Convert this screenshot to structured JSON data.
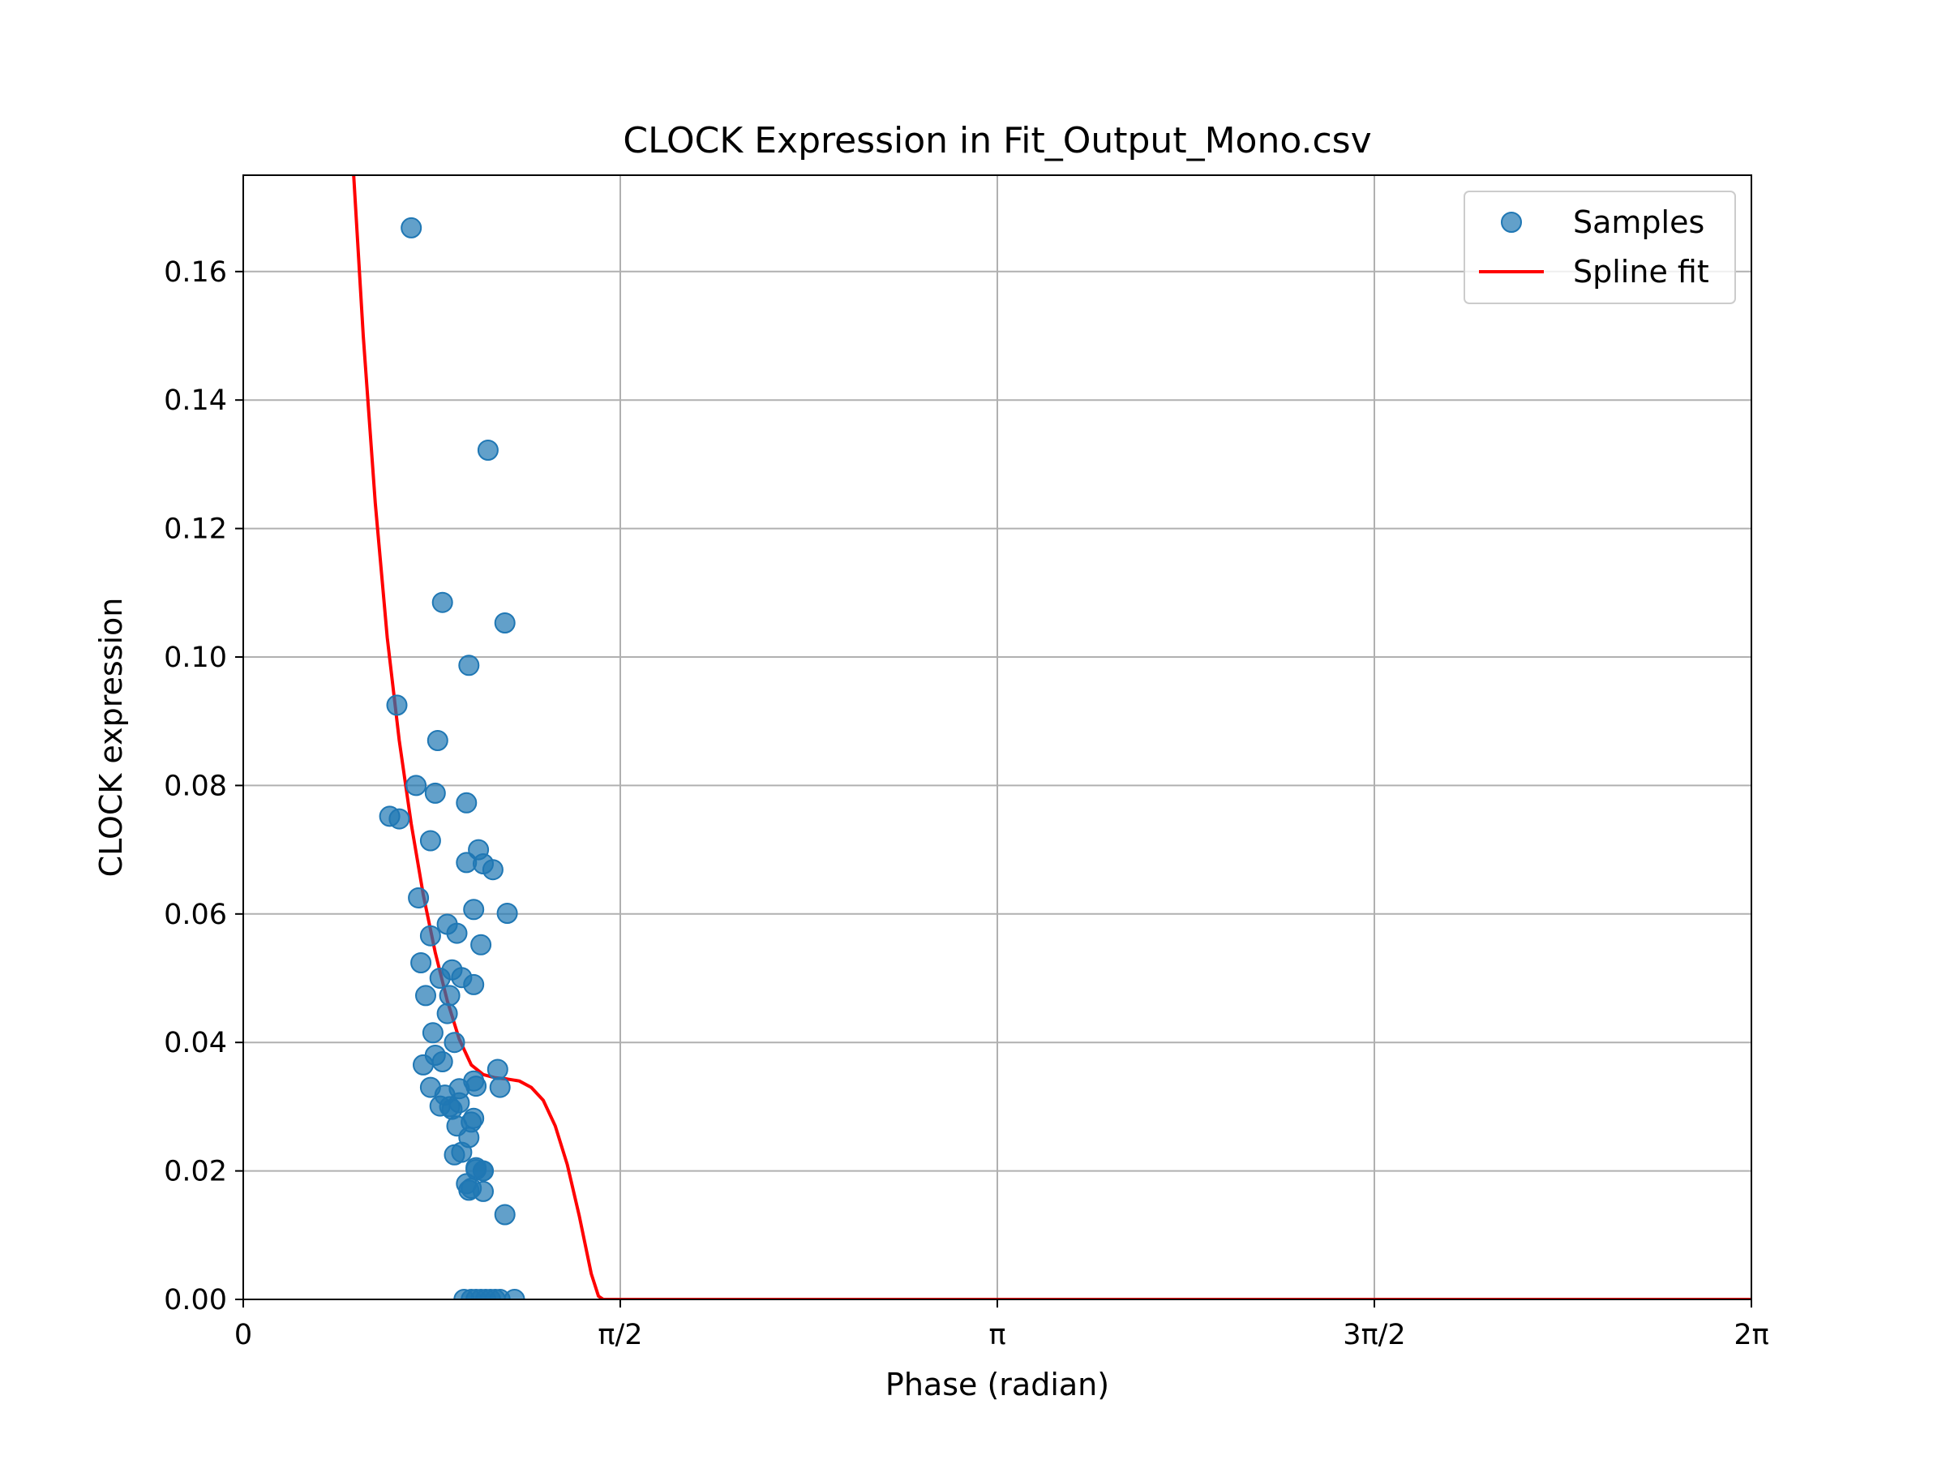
{
  "chart_data": {
    "type": "scatter",
    "title": "CLOCK Expression in Fit_Output_Mono.csv",
    "xlabel": "Phase (radian)",
    "ylabel": "CLOCK expression",
    "xlim": [
      0,
      6.2832
    ],
    "ylim": [
      0,
      0.175
    ],
    "grid": true,
    "legend_position": "top-right",
    "x_ticks": [
      {
        "value": 0,
        "label": "0"
      },
      {
        "value": 1.5708,
        "label": "π/2"
      },
      {
        "value": 3.1416,
        "label": "π"
      },
      {
        "value": 4.7124,
        "label": "3π/2"
      },
      {
        "value": 6.2832,
        "label": "2π"
      }
    ],
    "y_ticks": [
      {
        "value": 0.0,
        "label": "0.00"
      },
      {
        "value": 0.02,
        "label": "0.02"
      },
      {
        "value": 0.04,
        "label": "0.04"
      },
      {
        "value": 0.06,
        "label": "0.06"
      },
      {
        "value": 0.08,
        "label": "0.08"
      },
      {
        "value": 0.1,
        "label": "0.10"
      },
      {
        "value": 0.12,
        "label": "0.12"
      },
      {
        "value": 0.14,
        "label": "0.14"
      },
      {
        "value": 0.16,
        "label": "0.16"
      }
    ],
    "series": [
      {
        "name": "Samples",
        "kind": "scatter",
        "color": "#1f77b4",
        "x": [
          0.7,
          1.02,
          0.83,
          1.09,
          0.64,
          0.94,
          0.61,
          0.65,
          0.81,
          0.72,
          0.93,
          0.8,
          0.73,
          0.98,
          1.0,
          0.93,
          1.1,
          0.96,
          1.04,
          0.78,
          0.74,
          0.85,
          0.87,
          0.89,
          0.82,
          0.99,
          0.91,
          0.86,
          0.96,
          0.76,
          0.79,
          0.88,
          0.85,
          0.78,
          1.06,
          0.8,
          0.75,
          0.83,
          0.9,
          0.86,
          0.97,
          0.96,
          0.89,
          1.07,
          0.82,
          0.94,
          0.87,
          0.91,
          0.88,
          0.95,
          0.96,
          1.0,
          0.93,
          0.94,
          0.97,
          1.0,
          1.09,
          0.97,
          0.95,
          1.0,
          0.78,
          0.84,
          0.9,
          0.92,
          0.95,
          0.97,
          0.99,
          1.01,
          1.03,
          1.05,
          1.07,
          1.13
        ],
        "y": [
          0.1668,
          0.1322,
          0.1085,
          0.1053,
          0.0925,
          0.0987,
          0.0752,
          0.0748,
          0.087,
          0.08,
          0.0773,
          0.0788,
          0.0625,
          0.07,
          0.0678,
          0.068,
          0.0601,
          0.0607,
          0.0669,
          0.0714,
          0.0524,
          0.0584,
          0.0513,
          0.057,
          0.05,
          0.0552,
          0.0501,
          0.0473,
          0.049,
          0.0473,
          0.0415,
          0.04,
          0.0445,
          0.0566,
          0.0358,
          0.038,
          0.0365,
          0.037,
          0.0328,
          0.03,
          0.0332,
          0.034,
          0.027,
          0.033,
          0.0301,
          0.0252,
          0.0296,
          0.0229,
          0.0225,
          0.0276,
          0.0282,
          0.02,
          0.018,
          0.017,
          0.0205,
          0.0168,
          0.0132,
          0.0202,
          0.0173,
          0.02,
          0.033,
          0.0318,
          0.0306,
          0.0,
          0.0,
          0.0,
          0.0,
          0.0,
          0.0,
          0.0,
          0.0,
          0.0
        ]
      },
      {
        "name": "Spline fit",
        "kind": "line",
        "color": "#ff0000",
        "x": [
          0.46,
          0.5,
          0.55,
          0.6,
          0.65,
          0.7,
          0.75,
          0.8,
          0.85,
          0.9,
          0.95,
          1.0,
          1.05,
          1.1,
          1.15,
          1.2,
          1.25,
          1.3,
          1.35,
          1.4,
          1.45,
          1.48,
          1.5,
          6.2832
        ],
        "y": [
          0.175,
          0.15,
          0.124,
          0.103,
          0.087,
          0.074,
          0.063,
          0.054,
          0.0465,
          0.0405,
          0.0365,
          0.035,
          0.0345,
          0.0343,
          0.034,
          0.033,
          0.031,
          0.027,
          0.021,
          0.013,
          0.004,
          0.0005,
          0.0,
          0.0
        ]
      }
    ]
  }
}
